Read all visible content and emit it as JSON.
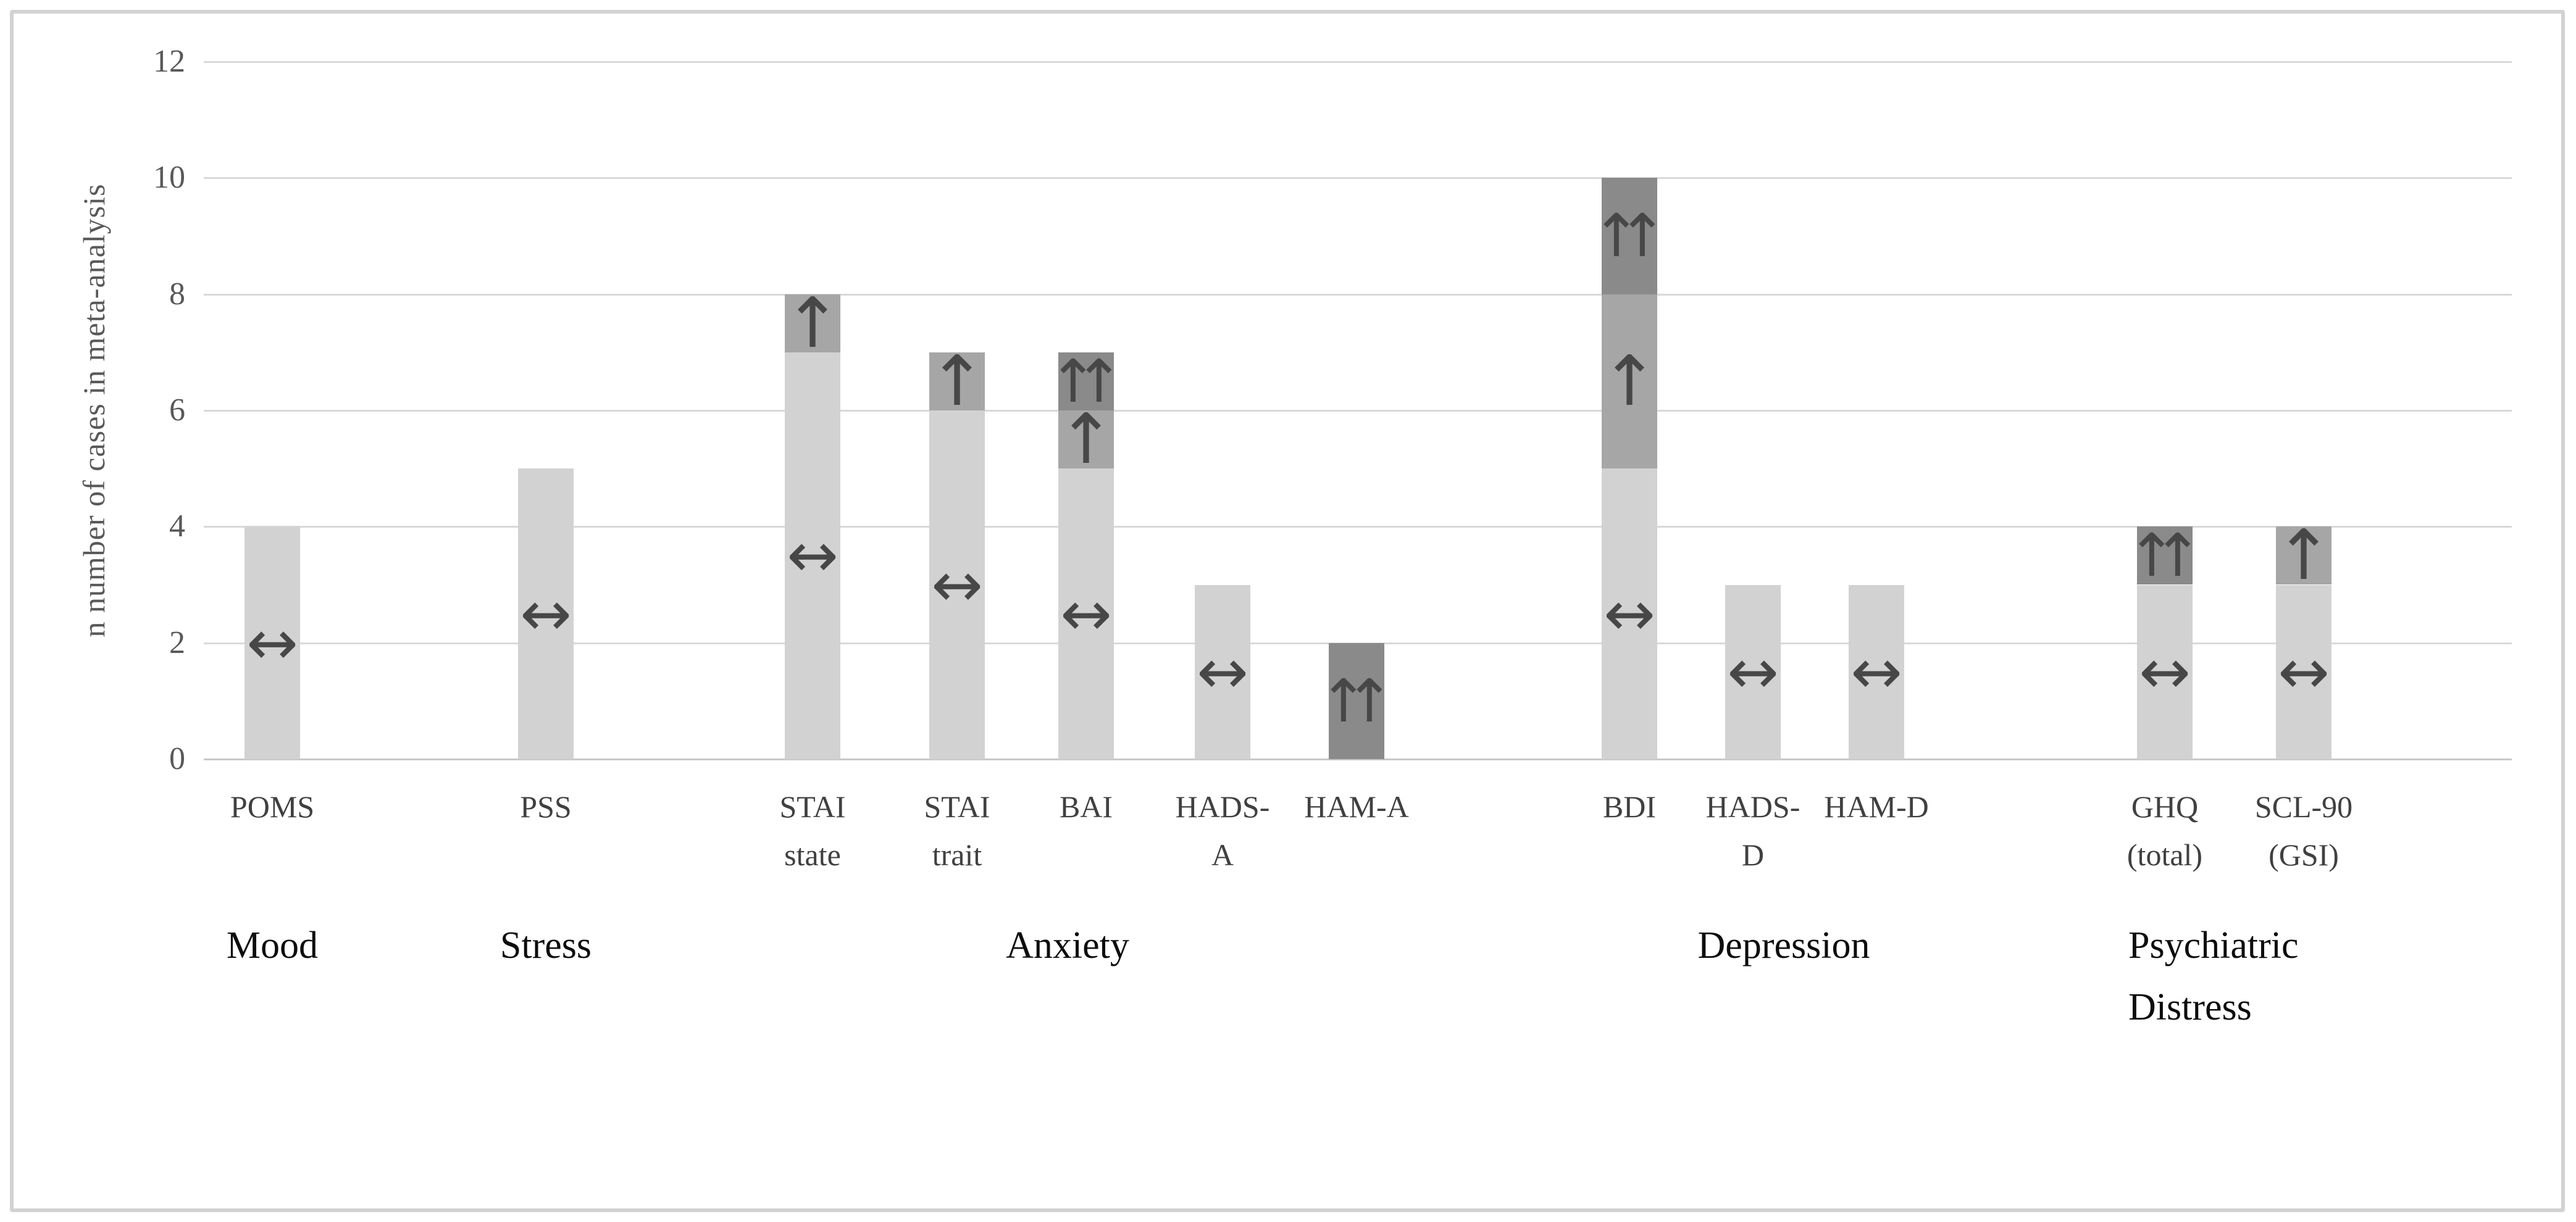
{
  "chart_data": {
    "type": "bar",
    "stacked": true,
    "title": "",
    "xlabel": "",
    "ylabel": "n number of cases in meta-analysis",
    "ylim": [
      0,
      12
    ],
    "yticks": [
      0,
      2,
      4,
      6,
      8,
      10,
      12
    ],
    "grid": "horizontal",
    "legend_position": "none",
    "segment_colors": {
      "no_change": "#d2d2d2",
      "increase": "#a6a6a6",
      "strong_increase": "#8a8a8a"
    },
    "style_colors": {
      "gridline": "#d9d9d9",
      "zero_line": "#c9c9c9",
      "tick_label": "#595959",
      "measure_label": "#404040",
      "group_label": "#0d0d0d",
      "arrow": "#474747",
      "frame_border": "#d2d2d2"
    },
    "symbols": {
      "no_change": "↔",
      "increase": "↑",
      "strong_increase": "↑↑"
    },
    "groups": [
      {
        "label": "Mood",
        "bars": [
          {
            "label": "POMS",
            "display_label": "POMS",
            "total": 4,
            "segments": [
              {
                "value": 4,
                "type": "no_change",
                "symbol": "↔"
              }
            ]
          }
        ]
      },
      {
        "label": "Stress",
        "bars": [
          {
            "label": "PSS",
            "display_label": "PSS",
            "total": 5,
            "segments": [
              {
                "value": 5,
                "type": "no_change",
                "symbol": "↔"
              }
            ]
          }
        ]
      },
      {
        "label": "Anxiety",
        "bars": [
          {
            "label": "STAI state",
            "display_label": "STAI\nstate",
            "total": 8,
            "segments": [
              {
                "value": 7,
                "type": "no_change",
                "symbol": "↔"
              },
              {
                "value": 1,
                "type": "increase",
                "symbol": "↑"
              }
            ]
          },
          {
            "label": "STAI trait",
            "display_label": "STAI\ntrait",
            "total": 7,
            "segments": [
              {
                "value": 6,
                "type": "no_change",
                "symbol": "↔"
              },
              {
                "value": 1,
                "type": "increase",
                "symbol": "↑"
              }
            ]
          },
          {
            "label": "BAI",
            "display_label": "BAI",
            "total": 7,
            "segments": [
              {
                "value": 5,
                "type": "no_change",
                "symbol": "↔"
              },
              {
                "value": 1,
                "type": "increase",
                "symbol": "↑"
              },
              {
                "value": 1,
                "type": "strong_increase",
                "symbol": "↑↑"
              }
            ]
          },
          {
            "label": "HADS-A",
            "display_label": "HADS-\nA",
            "total": 3,
            "segments": [
              {
                "value": 3,
                "type": "no_change",
                "symbol": "↔"
              }
            ]
          },
          {
            "label": "HAM-A",
            "display_label": "HAM-A",
            "total": 2,
            "segments": [
              {
                "value": 2,
                "type": "strong_increase",
                "symbol": "↑↑"
              }
            ]
          }
        ]
      },
      {
        "label": "Depression",
        "bars": [
          {
            "label": "BDI",
            "display_label": "BDI",
            "total": 10,
            "segments": [
              {
                "value": 5,
                "type": "no_change",
                "symbol": "↔"
              },
              {
                "value": 3,
                "type": "increase",
                "symbol": "↑"
              },
              {
                "value": 2,
                "type": "strong_increase",
                "symbol": "↑↑"
              }
            ]
          },
          {
            "label": "HADS-D",
            "display_label": "HADS-\nD",
            "total": 3,
            "segments": [
              {
                "value": 3,
                "type": "no_change",
                "symbol": "↔"
              }
            ]
          },
          {
            "label": "HAM-D",
            "display_label": "HAM-D",
            "total": 3,
            "segments": [
              {
                "value": 3,
                "type": "no_change",
                "symbol": "↔"
              }
            ]
          }
        ]
      },
      {
        "label": "Psychiatric\nDistress",
        "bars": [
          {
            "label": "GHQ (total)",
            "display_label": "GHQ\n(total)",
            "total": 4,
            "segments": [
              {
                "value": 3,
                "type": "no_change",
                "symbol": "↔"
              },
              {
                "value": 1,
                "type": "strong_increase",
                "symbol": "↑↑"
              }
            ]
          },
          {
            "label": "SCL-90 (GSI)",
            "display_label": "SCL-90\n(GSI)",
            "total": 4,
            "segments": [
              {
                "value": 3,
                "type": "no_change",
                "symbol": "↔"
              },
              {
                "value": 1,
                "type": "increase",
                "symbol": "↑"
              }
            ]
          }
        ]
      }
    ]
  }
}
